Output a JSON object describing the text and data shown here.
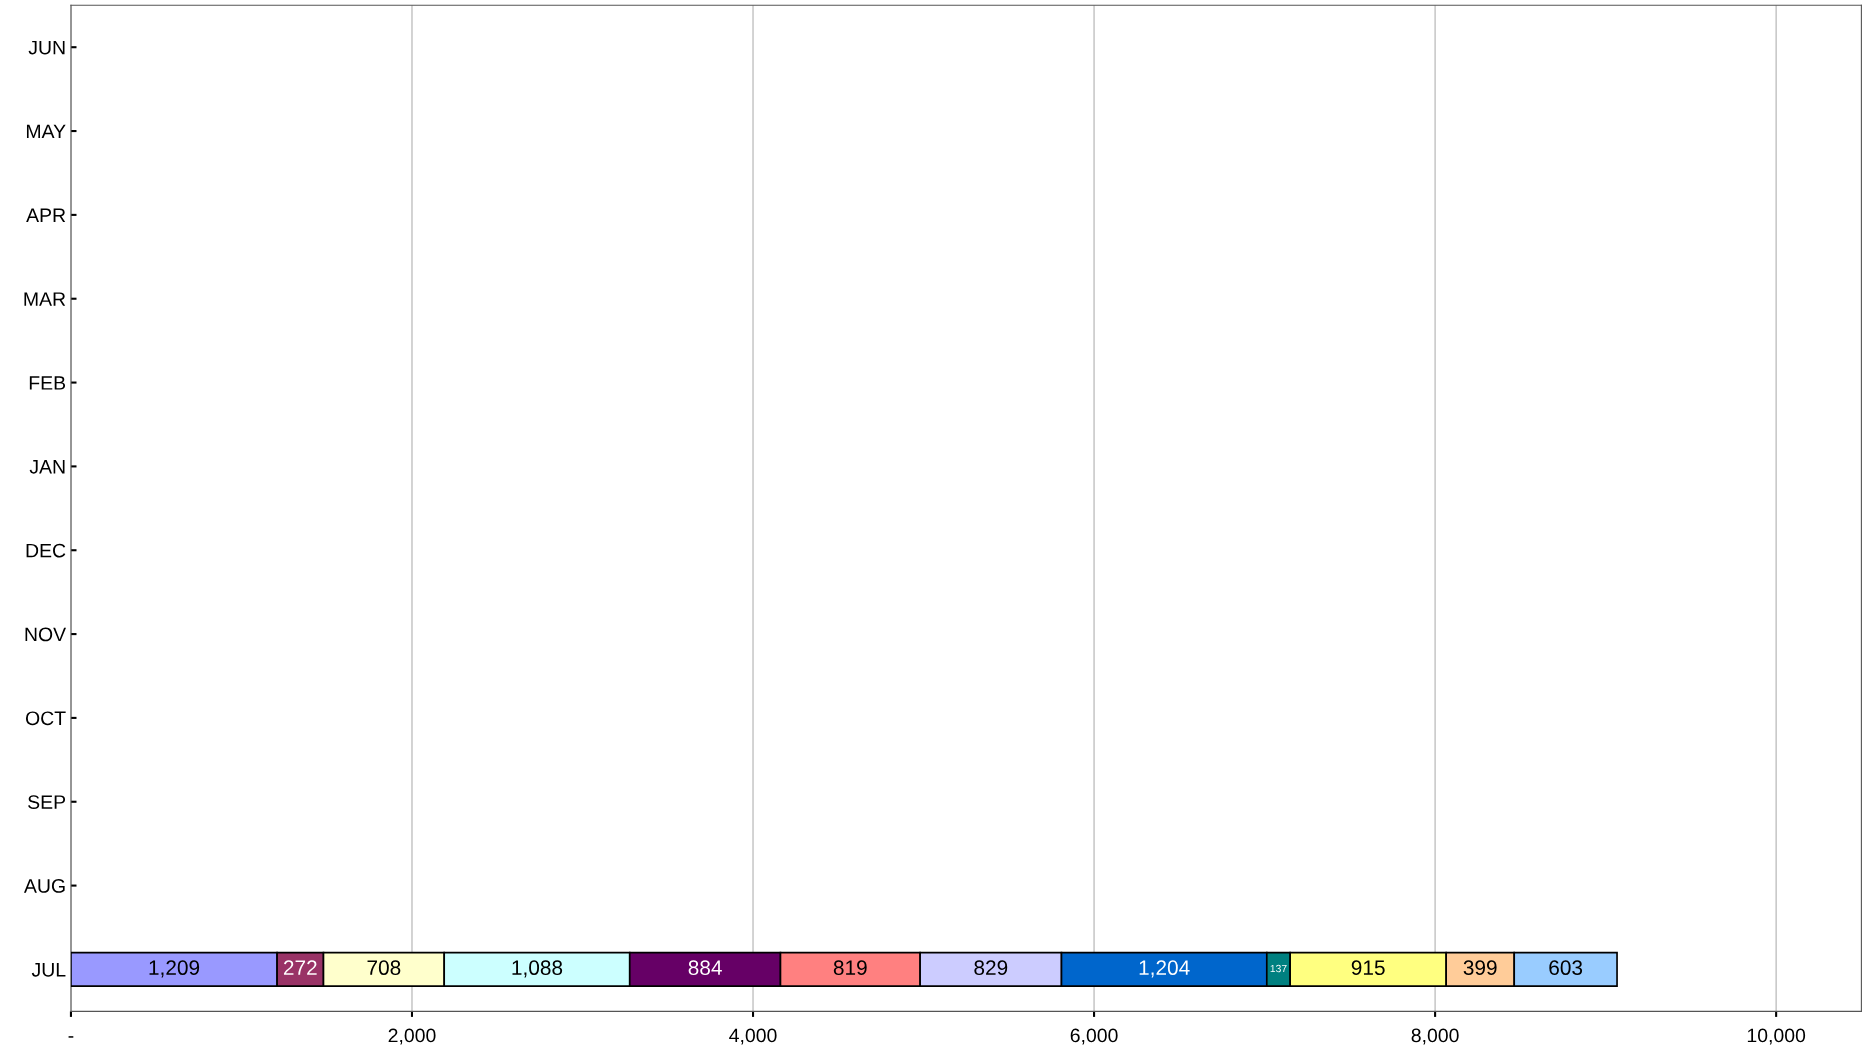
{
  "chart_data": {
    "type": "bar",
    "orientation": "horizontal",
    "stacked": true,
    "grid": "x",
    "legend": false,
    "categories": [
      "JUN",
      "MAY",
      "APR",
      "MAR",
      "FEB",
      "JAN",
      "DEC",
      "NOV",
      "OCT",
      "SEP",
      "AUG",
      "JUL"
    ],
    "xlim": [
      0,
      10500
    ],
    "xticks": [
      {
        "value": 0,
        "label": "-"
      },
      {
        "value": 2000,
        "label": "2,000"
      },
      {
        "value": 4000,
        "label": "4,000"
      },
      {
        "value": 6000,
        "label": "6,000"
      },
      {
        "value": 8000,
        "label": "8,000"
      },
      {
        "value": 10000,
        "label": "10,000"
      }
    ],
    "series": [
      {
        "color": "#9999ff",
        "values": [
          null,
          null,
          null,
          null,
          null,
          null,
          null,
          null,
          null,
          null,
          null,
          1209
        ],
        "value_labels": [
          null,
          null,
          null,
          null,
          null,
          null,
          null,
          null,
          null,
          null,
          null,
          "1,209"
        ]
      },
      {
        "color": "#993366",
        "values": [
          null,
          null,
          null,
          null,
          null,
          null,
          null,
          null,
          null,
          null,
          null,
          272
        ],
        "value_labels": [
          null,
          null,
          null,
          null,
          null,
          null,
          null,
          null,
          null,
          null,
          null,
          "272"
        ]
      },
      {
        "color": "#ffffcc",
        "values": [
          null,
          null,
          null,
          null,
          null,
          null,
          null,
          null,
          null,
          null,
          null,
          708
        ],
        "value_labels": [
          null,
          null,
          null,
          null,
          null,
          null,
          null,
          null,
          null,
          null,
          null,
          "708"
        ]
      },
      {
        "color": "#ccffff",
        "values": [
          null,
          null,
          null,
          null,
          null,
          null,
          null,
          null,
          null,
          null,
          null,
          1088
        ],
        "value_labels": [
          null,
          null,
          null,
          null,
          null,
          null,
          null,
          null,
          null,
          null,
          null,
          "1,088"
        ]
      },
      {
        "color": "#660066",
        "values": [
          null,
          null,
          null,
          null,
          null,
          null,
          null,
          null,
          null,
          null,
          null,
          884
        ],
        "value_labels": [
          null,
          null,
          null,
          null,
          null,
          null,
          null,
          null,
          null,
          null,
          null,
          "884"
        ]
      },
      {
        "color": "#ff8080",
        "values": [
          null,
          null,
          null,
          null,
          null,
          null,
          null,
          null,
          null,
          null,
          null,
          819
        ],
        "value_labels": [
          null,
          null,
          null,
          null,
          null,
          null,
          null,
          null,
          null,
          null,
          null,
          "819"
        ]
      },
      {
        "color": "#ccccff",
        "values": [
          null,
          null,
          null,
          null,
          null,
          null,
          null,
          null,
          null,
          null,
          null,
          829
        ],
        "value_labels": [
          null,
          null,
          null,
          null,
          null,
          null,
          null,
          null,
          null,
          null,
          null,
          "829"
        ]
      },
      {
        "color": "#0066cc",
        "values": [
          null,
          null,
          null,
          null,
          null,
          null,
          null,
          null,
          null,
          null,
          null,
          1204
        ],
        "value_labels": [
          null,
          null,
          null,
          null,
          null,
          null,
          null,
          null,
          null,
          null,
          null,
          "1,204"
        ]
      },
      {
        "color": "#008080",
        "values": [
          null,
          null,
          null,
          null,
          null,
          null,
          null,
          null,
          null,
          null,
          null,
          137
        ],
        "value_labels": [
          null,
          null,
          null,
          null,
          null,
          null,
          null,
          null,
          null,
          null,
          null,
          "137"
        ]
      },
      {
        "color": "#ffff80",
        "values": [
          null,
          null,
          null,
          null,
          null,
          null,
          null,
          null,
          null,
          null,
          null,
          915
        ],
        "value_labels": [
          null,
          null,
          null,
          null,
          null,
          null,
          null,
          null,
          null,
          null,
          null,
          "915"
        ]
      },
      {
        "color": "#ffcc99",
        "values": [
          null,
          null,
          null,
          null,
          null,
          null,
          null,
          null,
          null,
          null,
          null,
          399
        ],
        "value_labels": [
          null,
          null,
          null,
          null,
          null,
          null,
          null,
          null,
          null,
          null,
          null,
          "399"
        ]
      },
      {
        "color": "#99ccff",
        "values": [
          null,
          null,
          null,
          null,
          null,
          null,
          null,
          null,
          null,
          null,
          null,
          603
        ],
        "value_labels": [
          null,
          null,
          null,
          null,
          null,
          null,
          null,
          null,
          null,
          null,
          null,
          "603"
        ]
      }
    ]
  }
}
